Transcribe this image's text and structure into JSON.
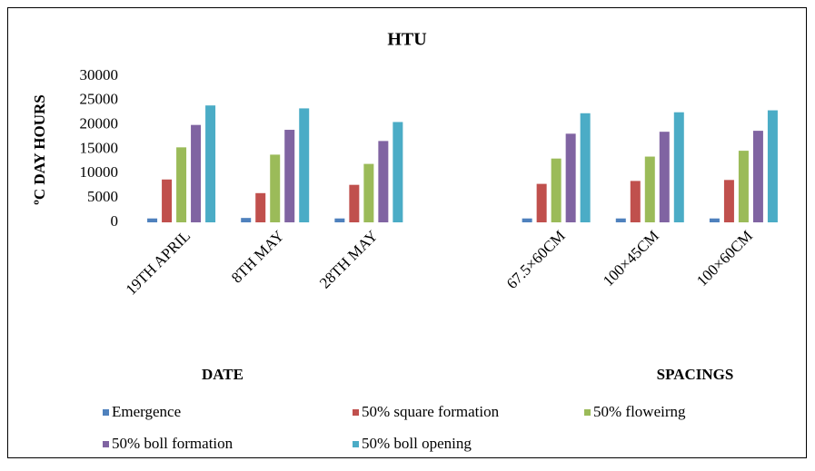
{
  "chart_data": {
    "type": "bar",
    "title": "HTU",
    "y_label": "ºC DAY HOURS",
    "x_group_labels": [
      "DATE",
      "SPACINGS"
    ],
    "categories": [
      "19TH APRIL",
      "8TH MAY",
      "28TH MAY",
      null,
      "67.5×60CM",
      "100×45CM",
      "100×60CM"
    ],
    "series": [
      {
        "name": "Emergence",
        "color": "#4f81bd",
        "values": [
          800,
          900,
          800,
          null,
          800,
          800,
          800
        ]
      },
      {
        "name": "50% square formation",
        "color": "#c0504d",
        "values": [
          8800,
          6000,
          7700,
          null,
          7900,
          8500,
          8700
        ]
      },
      {
        "name": "50% floweirng",
        "color": "#9bbb59",
        "values": [
          15400,
          13900,
          12000,
          null,
          13100,
          13500,
          14700
        ]
      },
      {
        "name": "50% boll formation",
        "color": "#8064a2",
        "values": [
          20000,
          19000,
          16700,
          null,
          18200,
          18600,
          18800
        ]
      },
      {
        "name": "50% boll opening",
        "color": "#4bacc6",
        "values": [
          24000,
          23400,
          20600,
          null,
          22400,
          22600,
          23000
        ]
      }
    ],
    "ylim": [
      0,
      30000
    ],
    "yticks": [
      0,
      5000,
      10000,
      15000,
      20000,
      25000,
      30000
    ],
    "grid": false,
    "legend": "bottom"
  }
}
